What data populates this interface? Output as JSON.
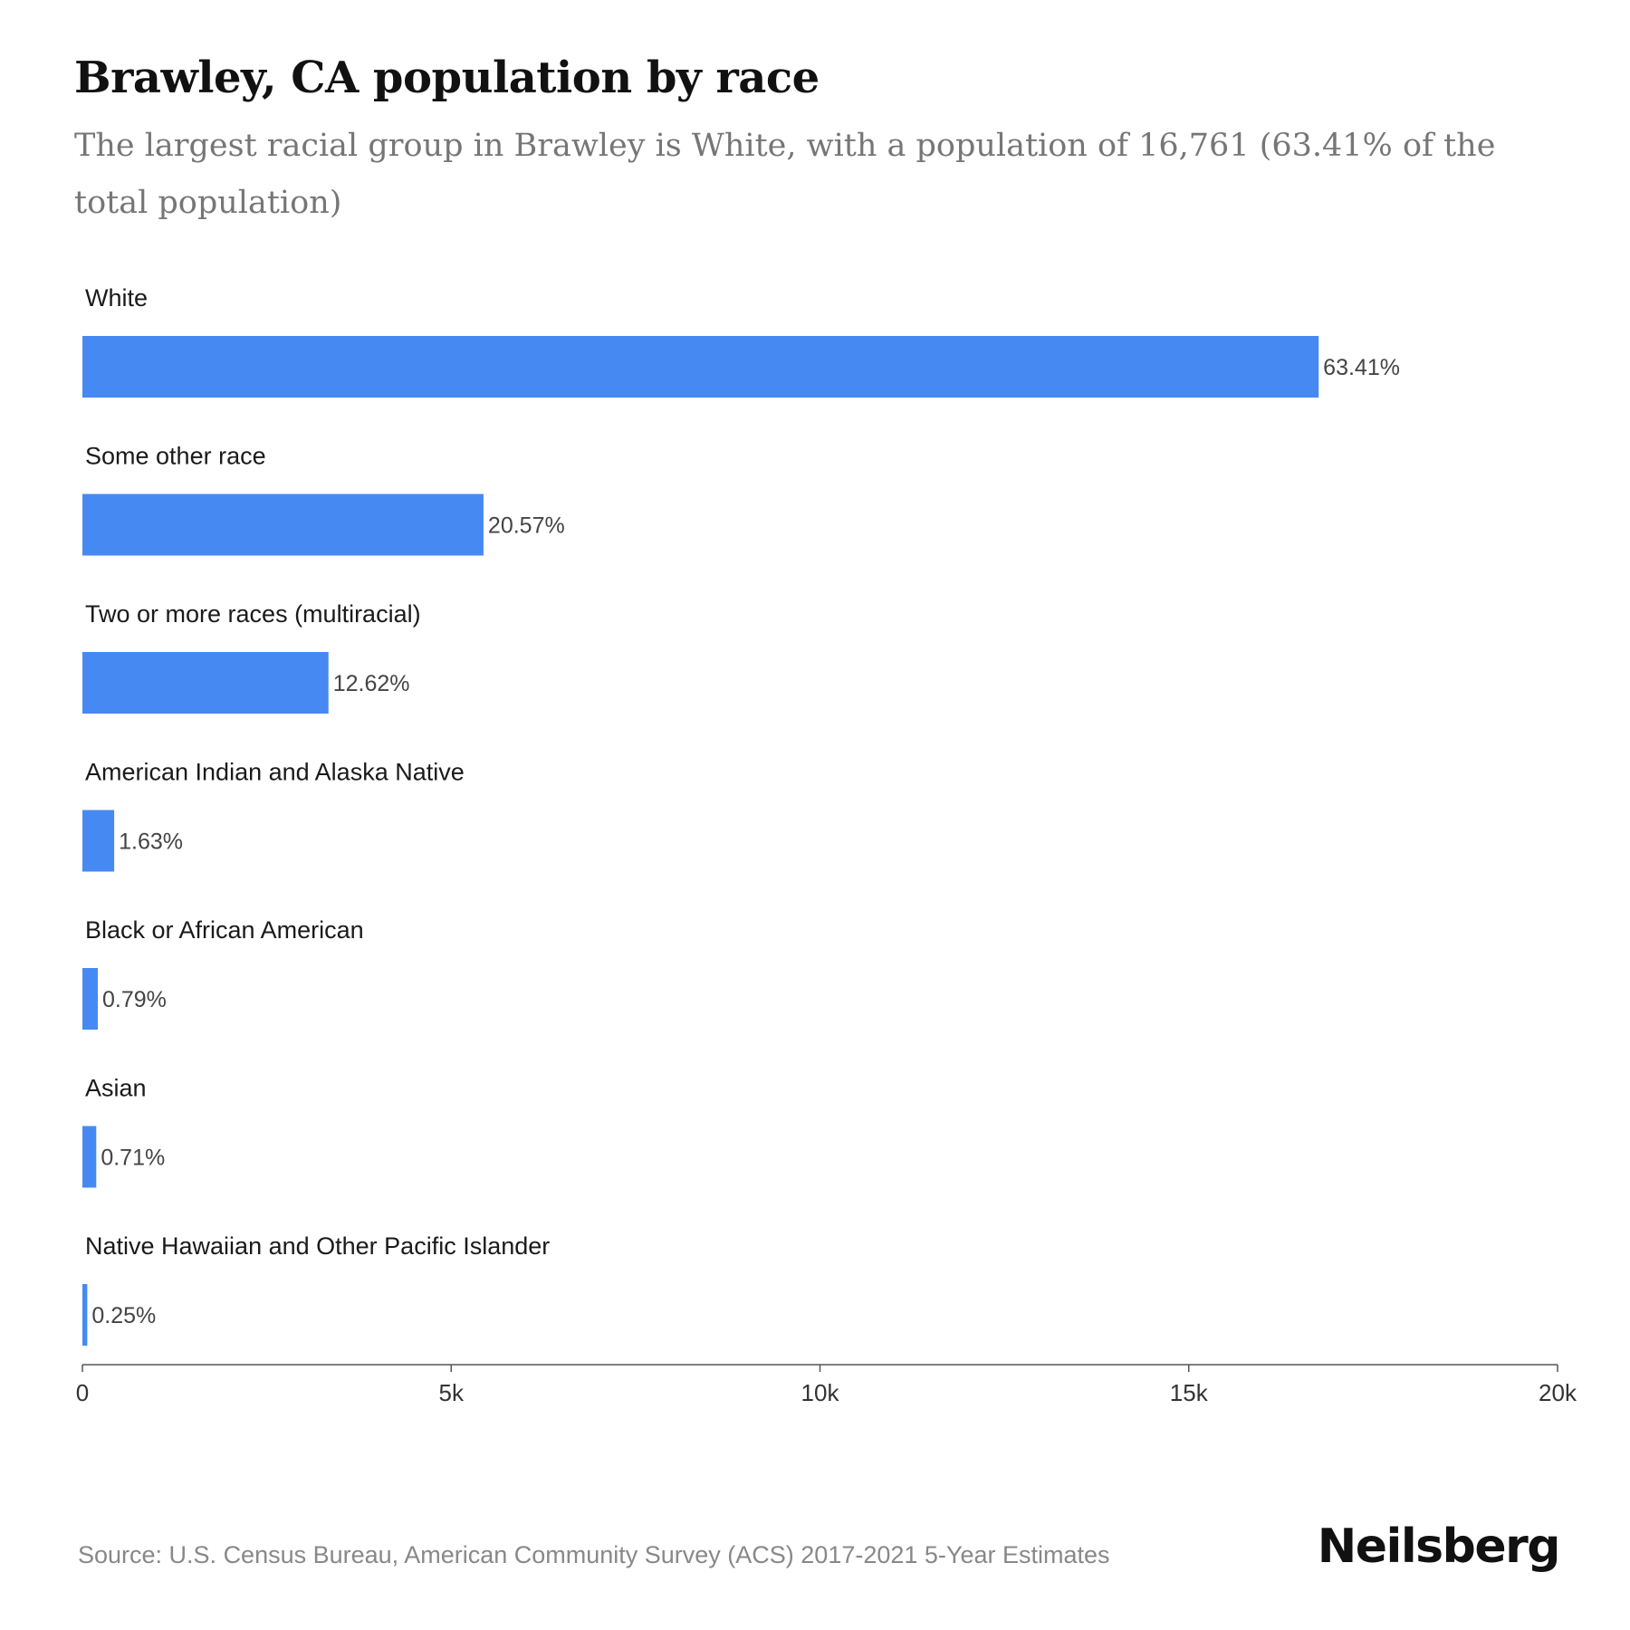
{
  "header": {
    "title": "Brawley, CA population by race",
    "subtitle": "The largest racial group in Brawley is White, with a population of 16,761 (63.41% of the total population)"
  },
  "footer": {
    "source": "Source: U.S. Census Bureau, American Community Survey (ACS) 2017-2021 5-Year Estimates",
    "brand": "Neilsberg"
  },
  "colors": {
    "bar": "#4689f3",
    "axis": "#555555"
  },
  "chart_data": {
    "type": "bar",
    "orientation": "horizontal",
    "categories": [
      "White",
      "Some other race",
      "Two or more races (multiracial)",
      "American Indian and Alaska Native",
      "Black or African American",
      "Asian",
      "Native Hawaiian and Other Pacific Islander"
    ],
    "values": [
      16761,
      5438,
      3336,
      431,
      209,
      188,
      66
    ],
    "data_labels": [
      "63.41%",
      "20.57%",
      "12.62%",
      "1.63%",
      "0.79%",
      "0.71%",
      "0.25%"
    ],
    "xlim": [
      0,
      20000
    ],
    "x_ticks": [
      0,
      5000,
      10000,
      15000,
      20000
    ],
    "x_tick_labels": [
      "0",
      "5k",
      "10k",
      "15k",
      "20k"
    ],
    "grid": false
  }
}
